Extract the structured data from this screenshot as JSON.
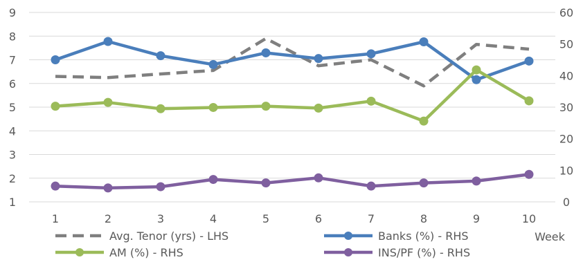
{
  "chart_data": {
    "type": "line",
    "title": "",
    "xlabel": "Week",
    "categories": [
      "1",
      "2",
      "3",
      "4",
      "5",
      "6",
      "7",
      "8",
      "9",
      "10"
    ],
    "y_left": {
      "ylim": [
        1,
        9
      ],
      "ticks": [
        1,
        2,
        3,
        4,
        5,
        6,
        7,
        8,
        9
      ]
    },
    "y_right": {
      "ylim": [
        0,
        60
      ],
      "ticks": [
        0,
        10,
        20,
        30,
        40,
        50,
        60
      ]
    },
    "grid": true,
    "legend_position": "bottom",
    "series": [
      {
        "name": "Avg. Tenor (yrs) - LHS",
        "axis": "left",
        "color": "#7f7f7f",
        "style": "dashed",
        "markers": false,
        "values": [
          6.3,
          6.25,
          6.4,
          6.55,
          7.9,
          6.75,
          7.0,
          5.9,
          7.65,
          7.45
        ]
      },
      {
        "name": "Banks (%) - RHS",
        "axis": "right",
        "color": "#4a7ebb",
        "style": "solid",
        "markers": true,
        "values": [
          45,
          50.8,
          46.3,
          43.5,
          47.2,
          45.4,
          46.9,
          50.7,
          38.7,
          44.6
        ]
      },
      {
        "name": "AM (%) - RHS",
        "axis": "right",
        "color": "#9bbb59",
        "style": "solid",
        "markers": true,
        "values": [
          30.3,
          31.5,
          29.5,
          29.9,
          30.3,
          29.7,
          31.9,
          25.6,
          41.8,
          32.0
        ]
      },
      {
        "name": "INS/PF (%) - RHS",
        "axis": "right",
        "color": "#7f5f9f",
        "style": "solid",
        "markers": true,
        "values": [
          5.0,
          4.4,
          4.8,
          7.1,
          6.0,
          7.6,
          5.0,
          6.0,
          6.6,
          8.7
        ]
      }
    ]
  }
}
